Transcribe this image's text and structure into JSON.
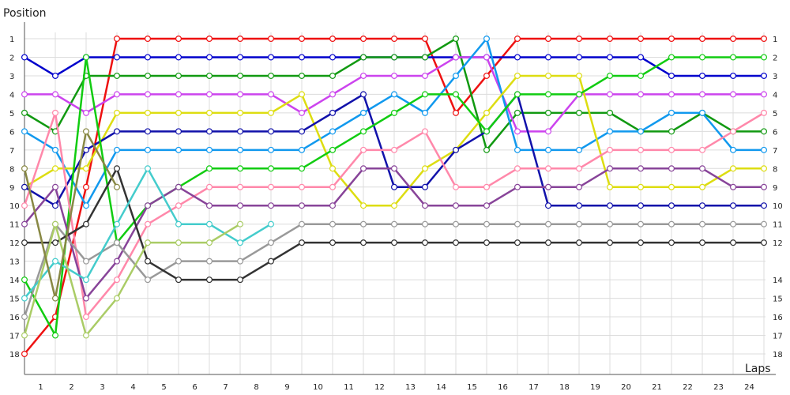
{
  "chart_data": {
    "type": "line",
    "ylabel": "Position",
    "xlabel": "Laps",
    "x_ticks": [
      "1",
      "2",
      "3",
      "4",
      "5",
      "6",
      "7",
      "8",
      "9",
      "10",
      "11",
      "12",
      "13",
      "14",
      "15",
      "16",
      "17",
      "18",
      "19",
      "20",
      "21",
      "22",
      "23",
      "24"
    ],
    "y_ticks": [
      "1",
      "2",
      "3",
      "4",
      "5",
      "6",
      "7",
      "8",
      "9",
      "10",
      "11",
      "12",
      "13",
      "14",
      "15",
      "16",
      "17",
      "18"
    ],
    "y_ticks_right": [
      "1",
      "2",
      "3",
      "4",
      "5",
      "6",
      "7",
      "8",
      "9",
      "10",
      "11",
      "12",
      "14",
      "15",
      "16",
      "17",
      "18"
    ],
    "ylim": [
      1,
      18
    ],
    "y_inverted": true,
    "grid": true,
    "series": [
      {
        "color": "#ee1111",
        "start": 18,
        "values": [
          16,
          9,
          1,
          1,
          1,
          1,
          1,
          1,
          1,
          1,
          1,
          1,
          1,
          5,
          3,
          1,
          1,
          1,
          1,
          1,
          1,
          1,
          1,
          1
        ]
      },
      {
        "color": "#0000cc",
        "start": 2,
        "values": [
          3,
          2,
          2,
          2,
          2,
          2,
          2,
          2,
          2,
          2,
          2,
          2,
          2,
          2,
          2,
          2,
          2,
          2,
          2,
          2,
          3,
          3,
          3,
          3
        ]
      },
      {
        "color": "#119911",
        "start": 5,
        "values": [
          6,
          3,
          3,
          3,
          3,
          3,
          3,
          3,
          3,
          3,
          2,
          2,
          2,
          1,
          7,
          5,
          5,
          5,
          5,
          6,
          6,
          5,
          6,
          6
        ]
      },
      {
        "color": "#cc44ee",
        "start": 4,
        "values": [
          4,
          5,
          4,
          4,
          4,
          4,
          4,
          4,
          5,
          4,
          3,
          3,
          3,
          2,
          2,
          6,
          6,
          4,
          4,
          4,
          4,
          4,
          4,
          4
        ]
      },
      {
        "color": "#1199ee",
        "start": 6,
        "values": [
          7,
          10,
          7,
          7,
          7,
          7,
          7,
          7,
          7,
          6,
          5,
          4,
          5,
          3,
          1,
          7,
          7,
          7,
          6,
          6,
          5,
          5,
          7,
          7
        ]
      },
      {
        "color": "#dddd11",
        "start": 9,
        "values": [
          8,
          8,
          5,
          5,
          5,
          5,
          5,
          5,
          4,
          8,
          10,
          10,
          8,
          7,
          5,
          3,
          3,
          3,
          9,
          9,
          9,
          9,
          8,
          8
        ]
      },
      {
        "color": "#1111aa",
        "start": 9,
        "values": [
          10,
          7,
          6,
          6,
          6,
          6,
          6,
          6,
          6,
          5,
          4,
          9,
          9,
          7,
          6,
          4,
          10,
          10,
          10,
          10,
          10,
          10,
          10,
          10
        ]
      },
      {
        "color": "#11cc11",
        "start": 14,
        "values": [
          17,
          2,
          12,
          10,
          9,
          8,
          8,
          8,
          8,
          7,
          6,
          5,
          4,
          4,
          6,
          4,
          4,
          4,
          3,
          3,
          2,
          2,
          2,
          2
        ]
      },
      {
        "color": "#ff88aa",
        "start": 10,
        "values": [
          5,
          16,
          14,
          11,
          10,
          9,
          9,
          9,
          9,
          9,
          7,
          7,
          6,
          9,
          9,
          8,
          8,
          8,
          7,
          7,
          7,
          7,
          6,
          5
        ]
      },
      {
        "color": "#884499",
        "start": 11,
        "values": [
          9,
          15,
          13,
          10,
          9,
          10,
          10,
          10,
          10,
          10,
          8,
          8,
          10,
          10,
          10,
          9,
          9,
          9,
          8,
          8,
          8,
          8,
          9,
          9
        ]
      },
      {
        "color": "#999999",
        "start": 16,
        "values": [
          11,
          13,
          12,
          14,
          13,
          13,
          13,
          12,
          11,
          11,
          11,
          11,
          11,
          11,
          11,
          11,
          11,
          11,
          11,
          11,
          11,
          11,
          11,
          11
        ]
      },
      {
        "color": "#333333",
        "start": 12,
        "values": [
          12,
          11,
          8,
          13,
          14,
          14,
          14,
          13,
          12,
          12,
          12,
          12,
          12,
          12,
          12,
          12,
          12,
          12,
          12,
          12,
          12,
          12,
          12,
          12
        ]
      },
      {
        "color": "#44cccc",
        "start": 15,
        "values": [
          13,
          14,
          11,
          8,
          11,
          11,
          12,
          11
        ]
      },
      {
        "color": "#aacc66",
        "start": 17,
        "values": [
          11,
          17,
          15,
          12,
          12,
          12,
          11
        ]
      },
      {
        "color": "#888844",
        "start": 8,
        "values": [
          15,
          6,
          9
        ]
      }
    ]
  }
}
